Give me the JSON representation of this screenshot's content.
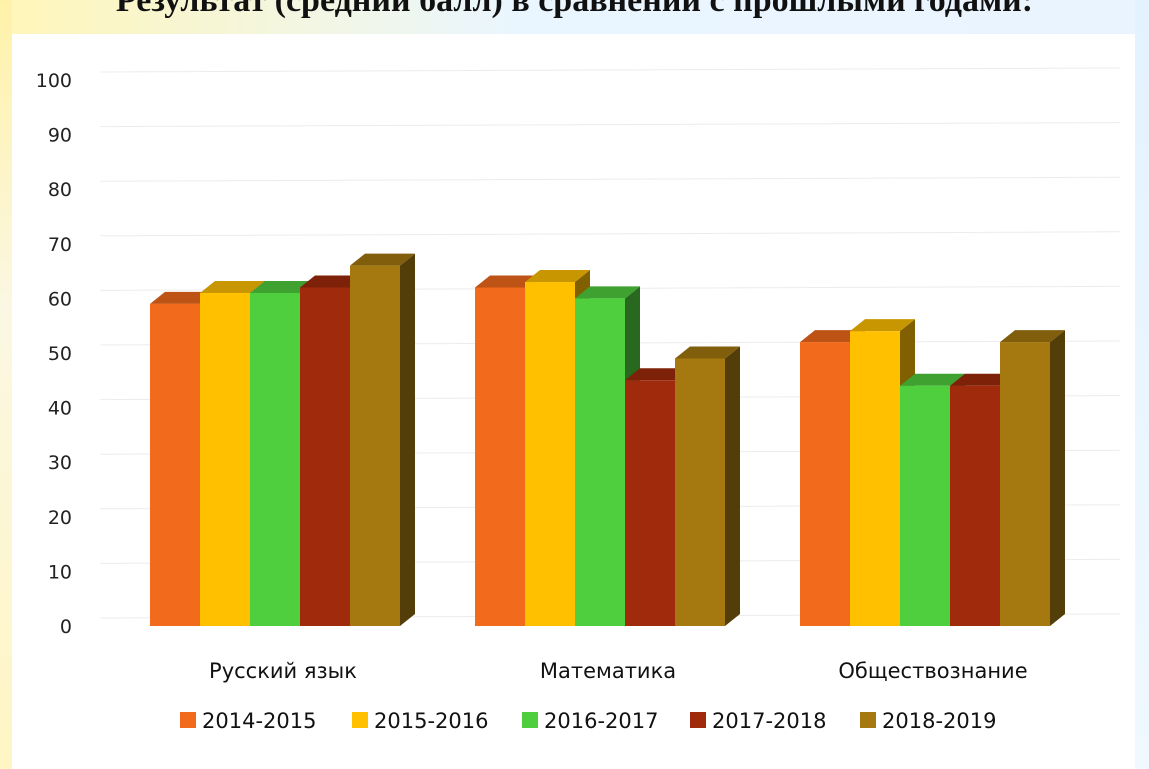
{
  "title": "Результат (средний балл) в сравнении с прошлыми годами:",
  "chart_data": {
    "type": "bar",
    "title": "Результат (средний балл) в сравнении с прошлыми годами:",
    "categories": [
      "Русский язык",
      "Математика",
      "Обществознание"
    ],
    "series": [
      {
        "name": "2014-2015",
        "values": [
          59,
          62,
          52
        ],
        "color": "#f26a1b"
      },
      {
        "name": "2015-2016",
        "values": [
          61,
          63,
          54
        ],
        "color": "#ffc000"
      },
      {
        "name": "2016-2017",
        "values": [
          61,
          60,
          44
        ],
        "color": "#4fcf3d"
      },
      {
        "name": "2017-2018",
        "values": [
          62,
          45,
          44
        ],
        "color": "#a02a0c"
      },
      {
        "name": "2018-2019",
        "values": [
          66,
          49,
          52
        ],
        "color": "#a57910"
      }
    ],
    "yticks": [
      "0",
      "10",
      "20",
      "30",
      "40",
      "50",
      "60",
      "70",
      "80",
      "90",
      "100"
    ],
    "ylim": [
      0,
      100
    ],
    "grid": true,
    "legend": "bottom"
  }
}
